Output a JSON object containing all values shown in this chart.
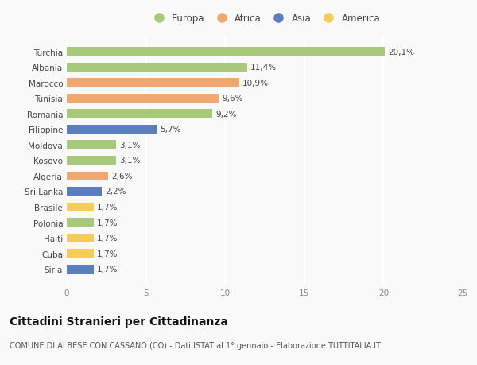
{
  "countries": [
    "Turchia",
    "Albania",
    "Marocco",
    "Tunisia",
    "Romania",
    "Filippine",
    "Moldova",
    "Kosovo",
    "Algeria",
    "Sri Lanka",
    "Brasile",
    "Polonia",
    "Haiti",
    "Cuba",
    "Siria"
  ],
  "values": [
    20.1,
    11.4,
    10.9,
    9.6,
    9.2,
    5.7,
    3.1,
    3.1,
    2.6,
    2.2,
    1.7,
    1.7,
    1.7,
    1.7,
    1.7
  ],
  "labels": [
    "20,1%",
    "11,4%",
    "10,9%",
    "9,6%",
    "9,2%",
    "5,7%",
    "3,1%",
    "3,1%",
    "2,6%",
    "2,2%",
    "1,7%",
    "1,7%",
    "1,7%",
    "1,7%",
    "1,7%"
  ],
  "continents": [
    "Europa",
    "Europa",
    "Africa",
    "Africa",
    "Europa",
    "Asia",
    "Europa",
    "Europa",
    "Africa",
    "Asia",
    "America",
    "Europa",
    "America",
    "America",
    "Asia"
  ],
  "colors": {
    "Europa": "#a8c87a",
    "Africa": "#f0a870",
    "Asia": "#5b7fbc",
    "America": "#f5cc55"
  },
  "title": "Cittadini Stranieri per Cittadinanza",
  "subtitle": "COMUNE DI ALBESE CON CASSANO (CO) - Dati ISTAT al 1° gennaio - Elaborazione TUTTITALIA.IT",
  "xlim": [
    0,
    25
  ],
  "xticks": [
    0,
    5,
    10,
    15,
    20,
    25
  ],
  "background_color": "#f9f9f9",
  "grid_color": "#ffffff",
  "label_fontsize": 7.5,
  "tick_fontsize": 7.5,
  "ytick_fontsize": 7.5,
  "title_fontsize": 10,
  "subtitle_fontsize": 7,
  "legend_fontsize": 8.5
}
